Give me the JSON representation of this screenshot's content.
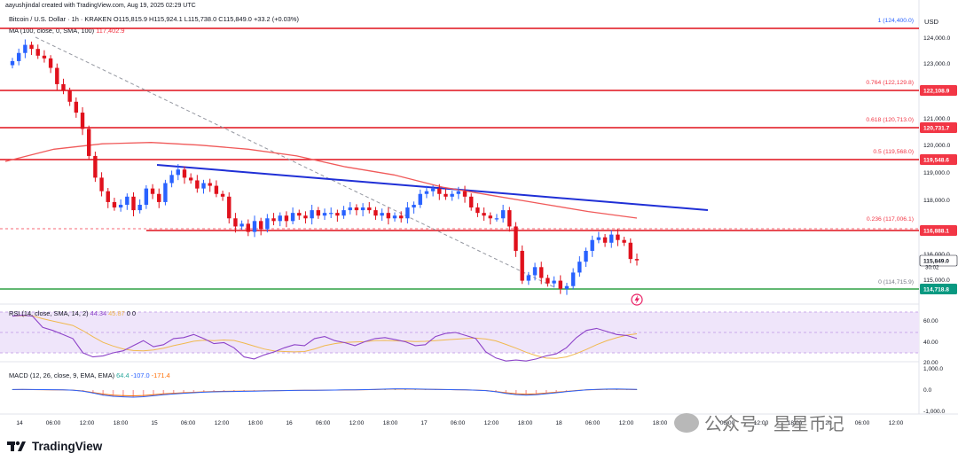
{
  "header": {
    "text": "aayushjindal created with TradingView.com, Aug 19, 2025 02:29 UTC"
  },
  "instrument": {
    "name": "Bitcoin / U.S. Dollar · 1h · KRAKEN",
    "ohlc": "O115,815.9 H115,924.1 L115,738.0 C115,849.0 +33.2 (+0.03%)",
    "ma_label": "MA (100, close, 0, SMA, 100)",
    "ma_value": "117,402.9"
  },
  "currency": "USD",
  "price_axis": {
    "ticks": [
      "124,000.0",
      "123,000.0",
      "121,000.0",
      "120,000.0",
      "119,000.0",
      "118,000.0",
      "116,000.0",
      "115,000.0"
    ],
    "tags": [
      {
        "label": "122,108.9",
        "color": "#f23645"
      },
      {
        "label": "120,731.7",
        "color": "#f23645"
      },
      {
        "label": "119,548.6",
        "color": "#f23645"
      },
      {
        "label": "116,888.1",
        "color": "#f23645"
      },
      {
        "label": "115,849.0",
        "color": "#131722"
      },
      {
        "label": "30:02",
        "color": "#131722"
      },
      {
        "label": "114,718.8",
        "color": "#089981"
      }
    ]
  },
  "fib_levels": [
    {
      "ratio": "1",
      "label": "1 (124,400.0)"
    },
    {
      "ratio": "0.764",
      "label": "0.764 (122,129.8)"
    },
    {
      "ratio": "0.618",
      "label": "0.618 (120,713.0)"
    },
    {
      "ratio": "0.5",
      "label": "0.5 (119,568.0)"
    },
    {
      "ratio": "0.236",
      "label": "0.236 (117,006.1)"
    },
    {
      "ratio": "0",
      "label": "0 (114,715.9)"
    }
  ],
  "rsi": {
    "label": "RSI (14, close, SMA, 14, 2)",
    "value1": "44.34",
    "value2": "45.87",
    "value3": "0",
    "value4": "0",
    "ticks": [
      "60.00",
      "40.00",
      "20.00"
    ]
  },
  "macd": {
    "label": "MACD (12, 26, close, 9, EMA, EMA)",
    "value1": "64.4",
    "value2": "-107.0",
    "value3": "-171.4",
    "ticks": [
      "1,000.0",
      "0.0",
      "-1,000.0"
    ]
  },
  "time_axis": [
    "14",
    "06:00",
    "12:00",
    "18:00",
    "15",
    "06:00",
    "12:00",
    "18:00",
    "16",
    "06:00",
    "12:00",
    "18:00",
    "17",
    "06:00",
    "12:00",
    "18:00",
    "18",
    "06:00",
    "12:00",
    "18:00",
    "19",
    "06:00",
    "12:00",
    "18:00",
    "20",
    "06:00",
    "12:00"
  ],
  "branding": {
    "logo_text": "TradingView",
    "watermark": "公众号 · 星星币记"
  },
  "colors": {
    "up": "#2962ff",
    "down": "#e0111c",
    "ma": "#f05a5a",
    "trend": "#1f2fd6",
    "support": "#2ea043",
    "rsi_band": "#efe5fa",
    "rsi_line": "#8e44c9",
    "rsi_ma": "#f0b94f"
  },
  "chart_data": {
    "type": "candlestick",
    "ylim": [
      114400,
      124800
    ],
    "candles_close": [
      123200,
      123500,
      123800,
      123650,
      123400,
      123300,
      122950,
      122350,
      122100,
      121700,
      121300,
      120700,
      119700,
      118900,
      118400,
      118000,
      117800,
      117900,
      118200,
      117700,
      117900,
      118500,
      118300,
      118000,
      118700,
      119000,
      119200,
      118900,
      118800,
      118500,
      118700,
      118600,
      118300,
      118200,
      117400,
      117100,
      117200,
      116900,
      117300,
      117000,
      117400,
      117300,
      117500,
      117300,
      117600,
      117500,
      117400,
      117700,
      117500,
      117600,
      117600,
      117500,
      117700,
      117800,
      117700,
      117800,
      117700,
      117500,
      117600,
      117400,
      117500,
      117400,
      117800,
      117900,
      118300,
      118400,
      118500,
      118300,
      118200,
      118300,
      118400,
      118200,
      117800,
      117600,
      117500,
      117400,
      117400,
      117700,
      117100,
      116200,
      115100,
      115300,
      115600,
      115200,
      115000,
      115100,
      114800,
      114900,
      115400,
      115800,
      116200,
      116600,
      116700,
      116500,
      116800,
      116600,
      116500,
      115900,
      115850
    ],
    "ma_values": [
      119500,
      119950,
      120150,
      120200,
      120100,
      119950,
      119700,
      119300,
      119000,
      118550,
      118250,
      117950,
      117650,
      117410
    ],
    "rsi_values": [
      66,
      67,
      66,
      55,
      52,
      48,
      44,
      30,
      26,
      27,
      30,
      32,
      37,
      42,
      36,
      38,
      44,
      45,
      48,
      44,
      39,
      40,
      35,
      26,
      24,
      28,
      31,
      35,
      38,
      37,
      44,
      46,
      42,
      40,
      37,
      41,
      44,
      45,
      43,
      41,
      37,
      38,
      46,
      49,
      50,
      47,
      44,
      31,
      25,
      22,
      23,
      22,
      24,
      27,
      29,
      35,
      45,
      52,
      54,
      51,
      48,
      47,
      44
    ],
    "macd_hist": [
      40,
      35,
      30,
      25,
      20,
      10,
      -10,
      -80,
      -200,
      -320,
      -380,
      -400,
      -420,
      -380,
      -320,
      -260,
      -220,
      -180,
      -150,
      -120,
      -100,
      -90,
      -80,
      -70,
      -60,
      -50,
      -40,
      -30,
      -20,
      -15,
      -10,
      -5,
      5,
      10,
      20,
      30,
      40,
      60,
      80,
      70,
      60,
      50,
      40,
      30,
      20,
      10,
      -10,
      -40,
      -120,
      -220,
      -280,
      -300,
      -260,
      -200,
      -140,
      -80,
      -20,
      20,
      40,
      60,
      60,
      50,
      30
    ]
  }
}
